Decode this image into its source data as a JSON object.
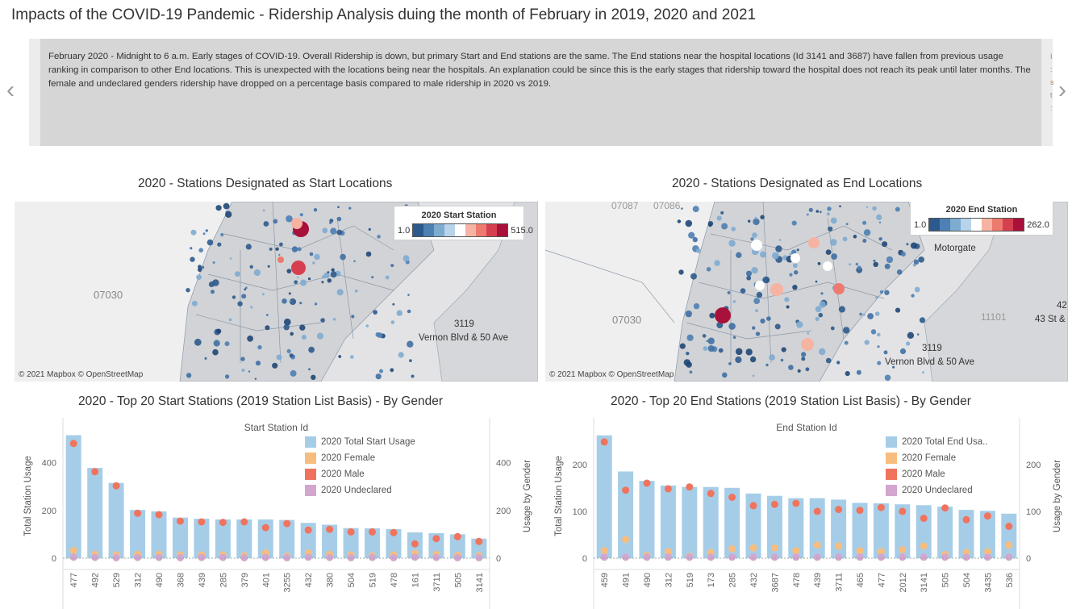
{
  "title": "Impacts of the COVID-19 Pandemic  - Ridership Analysis duing the month of February in 2019, 2020 and 2021",
  "story": {
    "text": "February 2020 - Midnight to 6 a.m.   Early stages of COVID-19.  Overall Ridership is down, but primary Start and End stations are the same.  The End stations near the hospital locations (Id 3141 and 3687) have fallen from previous usage ranking in comparison to other End locations.  This is unexpected with the locations being near the hospitals.  An explanation could be since this is the early stages that ridership toward  the hospital does not reach its peak until later months.   The female and undeclared genders ridership have dropped on a percentage basis compared to male ridership in 2020 vs 2019.",
    "prev_icon": "chevron-left-icon",
    "next_icon": "chevron-right-icon",
    "prev_glyph": "‹",
    "next_glyph": "›"
  },
  "start_map": {
    "title": "2020 - Stations Designated as Start Locations",
    "legend_title": "2020 Start Station",
    "legend_min": "1.0",
    "legend_max": "515.0",
    "credit": "© 2021 Mapbox © OpenStreetMap",
    "zip_label": "07030",
    "station_label_id": "3119",
    "station_label_name": "Vernon Blvd & 50 Ave"
  },
  "end_map": {
    "title": "2020 - Stations Designated as End Locations",
    "legend_title": "2020 End Station",
    "legend_min": "1.0",
    "legend_max": "262.0",
    "credit": "© 2021 Mapbox © OpenStreetMap",
    "zip_label": "07030",
    "top_zip_1": "07087",
    "top_zip_2": "07086",
    "zip_label_2": "11101",
    "place_label": "Motorgate",
    "station_label_id": "3119",
    "station_label_name": "Vernon Blvd & 50 Ave",
    "edge_label_id": "42",
    "edge_label_name": "43 St &"
  },
  "colors": {
    "total": "#a6cde8",
    "female": "#f7bd7e",
    "male": "#f0735e",
    "undeclared": "#d4a6cf",
    "scale": [
      "#2d5a8c",
      "#4d80b3",
      "#7eabd0",
      "#b7d4ea",
      "#ffffff",
      "#f7b3a2",
      "#ec7a6e",
      "#d6404e",
      "#a8113a"
    ]
  },
  "chart_data": [
    {
      "type": "bar",
      "title": "2020 - Top 20  Start Stations (2019 Station List Basis) - By Gender",
      "xlabel": "Start Station Id",
      "ylabel": "Total Station Usage",
      "ylabel2": "Usage by Gender",
      "ylim": [
        0,
        520
      ],
      "yticks": [
        0,
        200,
        400
      ],
      "categories": [
        "477",
        "492",
        "529",
        "312",
        "490",
        "368",
        "439",
        "285",
        "379",
        "401",
        "3255",
        "432",
        "380",
        "504",
        "519",
        "478",
        "161",
        "3711",
        "505",
        "3141"
      ],
      "series": [
        {
          "name": "2020 Total Start Usage",
          "kind": "bar",
          "values": [
            515,
            378,
            315,
            202,
            196,
            170,
            165,
            162,
            162,
            162,
            160,
            148,
            140,
            126,
            125,
            122,
            108,
            105,
            100,
            82
          ]
        },
        {
          "name": "2020 Female",
          "kind": "dot",
          "values": [
            32,
            16,
            14,
            16,
            16,
            14,
            14,
            14,
            10,
            22,
            8,
            22,
            16,
            14,
            10,
            14,
            20,
            16,
            12,
            10
          ]
        },
        {
          "name": "2020 Male",
          "kind": "dot",
          "values": [
            480,
            362,
            303,
            188,
            182,
            155,
            152,
            150,
            152,
            128,
            145,
            118,
            121,
            110,
            110,
            107,
            60,
            82,
            90,
            70
          ]
        },
        {
          "name": "2020 Undeclared",
          "kind": "dot",
          "values": [
            4,
            3,
            2,
            3,
            3,
            2,
            3,
            3,
            2,
            3,
            2,
            4,
            3,
            2,
            3,
            2,
            4,
            3,
            2,
            2
          ]
        }
      ]
    },
    {
      "type": "bar",
      "title": "2020  - Top 20  End Stations (2019 Station List Basis) - By Gender",
      "xlabel": "End Station Id",
      "ylabel": "Total Station Usage",
      "ylabel2": "Usage by Gender",
      "ylim": [
        0,
        265
      ],
      "yticks": [
        0,
        100,
        200
      ],
      "categories": [
        "459",
        "491",
        "490",
        "312",
        "519",
        "173",
        "285",
        "432",
        "3687",
        "478",
        "439",
        "3711",
        "465",
        "477",
        "2012",
        "3141",
        "505",
        "504",
        "3435",
        "536"
      ],
      "series": [
        {
          "name": "2020 Total End Usa..",
          "kind": "bar",
          "values": [
            262,
            185,
            165,
            155,
            152,
            152,
            150,
            138,
            133,
            128,
            128,
            125,
            118,
            117,
            115,
            113,
            110,
            103,
            101,
            95
          ]
        },
        {
          "name": "2020 Female",
          "kind": "dot",
          "values": [
            16,
            40,
            6,
            14,
            4,
            12,
            20,
            22,
            22,
            16,
            28,
            26,
            16,
            14,
            18,
            26,
            8,
            12,
            14,
            28
          ]
        },
        {
          "name": "2020 Male",
          "kind": "dot",
          "values": [
            248,
            145,
            160,
            148,
            152,
            138,
            130,
            112,
            115,
            117,
            100,
            104,
            102,
            108,
            100,
            85,
            107,
            82,
            90,
            68
          ]
        },
        {
          "name": "2020 Undeclared",
          "kind": "dot",
          "values": [
            2,
            2,
            2,
            2,
            2,
            2,
            2,
            2,
            2,
            2,
            2,
            2,
            2,
            2,
            2,
            2,
            2,
            2,
            2,
            2
          ]
        }
      ]
    }
  ]
}
